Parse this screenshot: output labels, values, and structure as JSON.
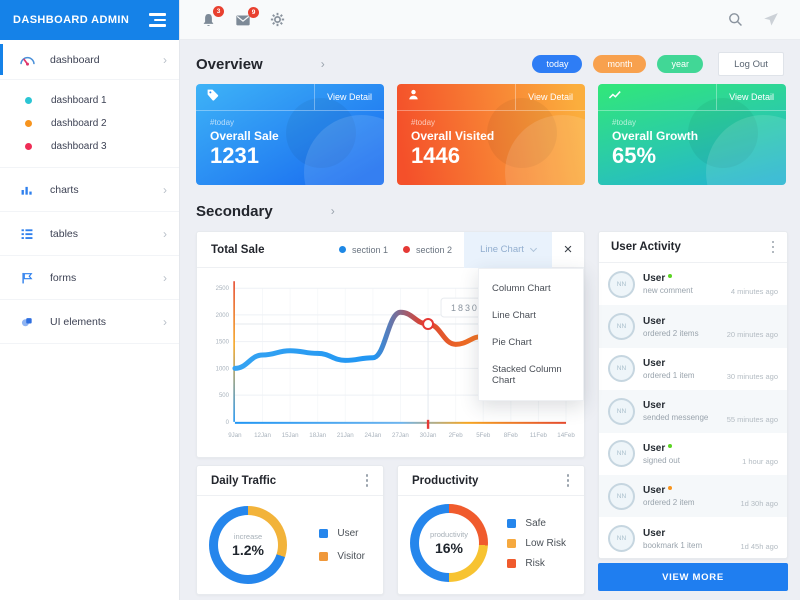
{
  "sidebar": {
    "title": "DASHBOARD ADMIN",
    "items": [
      {
        "label": "dashboard"
      },
      {
        "label": "dashboard 1",
        "dot": "#2bc5d4"
      },
      {
        "label": "dashboard 2",
        "dot": "#f7941e"
      },
      {
        "label": "dashboard 3",
        "dot": "#ef2d56"
      },
      {
        "label": "charts"
      },
      {
        "label": "tables"
      },
      {
        "label": "forms"
      },
      {
        "label": "UI elements"
      }
    ]
  },
  "topbar": {
    "bell_badge": "3",
    "mail_badge": "9"
  },
  "overview": {
    "title": "Overview",
    "pills": [
      {
        "label": "today",
        "color": "#2e7df5"
      },
      {
        "label": "month",
        "color": "#f8a14e"
      },
      {
        "label": "year",
        "color": "#41d796"
      }
    ],
    "logout": "Log Out"
  },
  "stat_cards": [
    {
      "tag": "#today",
      "title": "Overall Sale",
      "value": "1231",
      "action": "View Detail"
    },
    {
      "tag": "#today",
      "title": "Overall Visited",
      "value": "1446",
      "action": "View Detail"
    },
    {
      "tag": "#today",
      "title": "Overall Growth",
      "value": "65%",
      "action": "View Detail"
    }
  ],
  "secondary_title": "Secondary",
  "total_sale": {
    "title": "Total Sale",
    "legend": [
      {
        "label": "section 1",
        "color": "#1e88e5"
      },
      {
        "label": "section 2",
        "color": "#e53935"
      }
    ],
    "select_value": "Line Chart",
    "options": [
      "Column Chart",
      "Line Chart",
      "Pie Chart",
      "Stacked Column Chart"
    ]
  },
  "daily_traffic": {
    "title": "Daily Traffic",
    "center_label": "increase",
    "center_value": "1.2%",
    "legend": [
      {
        "label": "User",
        "color": "#2586ec"
      },
      {
        "label": "Visitor",
        "color": "#f0983a"
      }
    ]
  },
  "productivity": {
    "title": "Productivity",
    "center_label": "productivity",
    "center_value": "16%",
    "legend": [
      {
        "label": "Safe",
        "color": "#2586ec"
      },
      {
        "label": "Low Risk",
        "color": "#f6a93f"
      },
      {
        "label": "Risk",
        "color": "#f05b2d"
      }
    ]
  },
  "user_activity": {
    "title": "User Activity",
    "view_more": "VIEW MORE",
    "items": [
      {
        "initials": "NN",
        "name": "User",
        "dot": "#5ad422",
        "action": "new comment",
        "time": "4 minutes ago"
      },
      {
        "initials": "NN",
        "name": "User",
        "dot": "",
        "action": "ordered 2 items",
        "time": "20 minutes ago"
      },
      {
        "initials": "NN",
        "name": "User",
        "dot": "",
        "action": "ordered 1 item",
        "time": "30 minutes ago"
      },
      {
        "initials": "NN",
        "name": "User",
        "dot": "",
        "action": "sended messenge",
        "time": "55 minutes ago"
      },
      {
        "initials": "NN",
        "name": "User",
        "dot": "#5ad422",
        "action": "signed out",
        "time": "1 hour ago"
      },
      {
        "initials": "NN",
        "name": "User",
        "dot": "#f7941e",
        "action": "ordered 2 item",
        "time": "1d 30h ago"
      },
      {
        "initials": "NN",
        "name": "User",
        "dot": "",
        "action": "bookmark 1 item",
        "time": "1d 45h ago"
      }
    ]
  },
  "chart_data": [
    {
      "type": "line",
      "title": "Total Sale",
      "x": [
        "9Jan",
        "12Jan",
        "15Jan",
        "18Jan",
        "21Jan",
        "24Jan",
        "27Jan",
        "30Jan",
        "2Feb",
        "5Feb",
        "8Feb",
        "11Feb",
        "14Feb"
      ],
      "series": [
        {
          "name": "sale (section 1 -> section 2 gradient)",
          "values": [
            1000,
            1250,
            1330,
            1280,
            1150,
            1200,
            2050,
            1830,
            1450,
            1600,
            1850,
            2000,
            2150
          ]
        }
      ],
      "xlabel": "",
      "ylabel": "",
      "ylim": [
        0,
        2500
      ],
      "yticks": [
        0,
        500,
        1000,
        1500,
        2000,
        2500
      ],
      "grid": true,
      "legend_position": "top",
      "annotation": {
        "x": "30Jan",
        "value": 1830,
        "label": "1830"
      }
    },
    {
      "type": "pie",
      "title": "Daily Traffic",
      "labels": [
        "User",
        "Visitor"
      ],
      "values": [
        70,
        30
      ],
      "colors": [
        "#2586ec",
        "#f2b33a"
      ],
      "center_label": "increase",
      "center_value": "1.2%",
      "segments": [
        {
          "color": "#f2b33a",
          "pct": 30
        },
        {
          "color": "#2586ec",
          "pct": 70
        }
      ]
    },
    {
      "type": "pie",
      "title": "Productivity",
      "labels": [
        "Safe",
        "Low Risk",
        "Risk"
      ],
      "values": [
        50,
        24,
        26
      ],
      "colors": [
        "#2586ec",
        "#f6a93f",
        "#f05b2d"
      ],
      "center_label": "productivity",
      "center_value": "16%",
      "segments": [
        {
          "color": "#f05b2d",
          "pct": 26
        },
        {
          "color": "#f7c331",
          "pct": 24
        },
        {
          "color": "#2586ec",
          "pct": 50
        }
      ]
    }
  ]
}
